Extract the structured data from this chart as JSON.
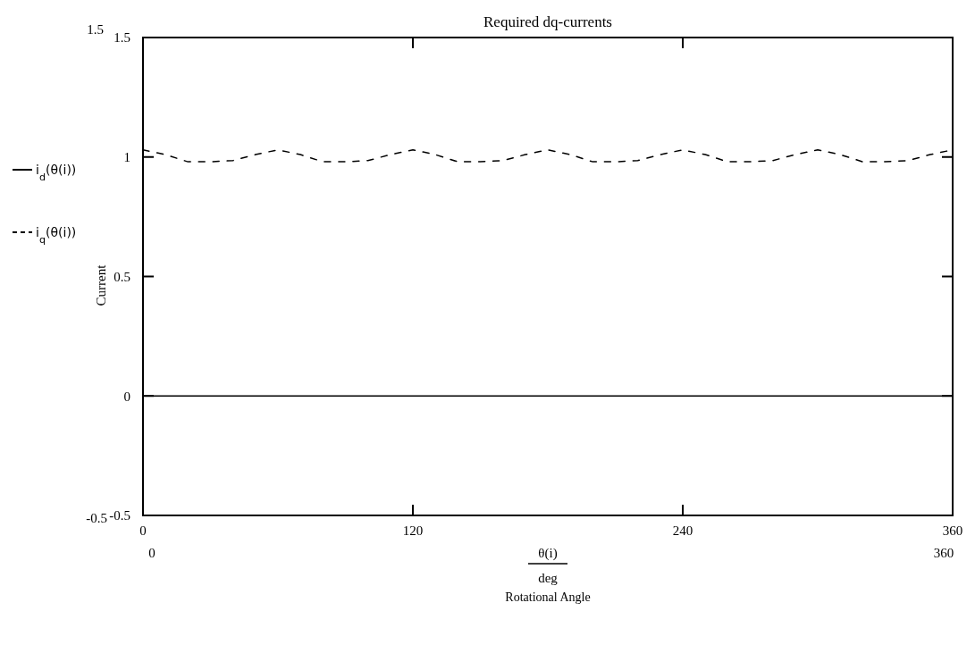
{
  "chart_data": {
    "type": "line",
    "title": "Required dq-currents",
    "xlabel": "Rotational Angle",
    "ylabel": "Current",
    "x": [
      0,
      10,
      20,
      30,
      40,
      50,
      60,
      70,
      80,
      90,
      100,
      110,
      120,
      130,
      140,
      150,
      160,
      170,
      180,
      190,
      200,
      210,
      220,
      230,
      240,
      250,
      260,
      270,
      280,
      290,
      300,
      310,
      320,
      330,
      340,
      350,
      360
    ],
    "series": [
      {
        "name": "i$_{d}$(θ(i))",
        "color": "#000000",
        "line_style": "solid",
        "values": [
          0,
          0,
          0,
          0,
          0,
          0,
          0,
          0,
          0,
          0,
          0,
          0,
          0,
          0,
          0,
          0,
          0,
          0,
          0,
          0,
          0,
          0,
          0,
          0,
          0,
          0,
          0,
          0,
          0,
          0,
          0,
          0,
          0,
          0,
          0,
          0,
          0
        ]
      },
      {
        "name": "i$_{q}$(θ(i))",
        "color": "#000000",
        "line_style": "dashed",
        "values": [
          1.03,
          1.01,
          0.98,
          0.98,
          0.985,
          1.01,
          1.03,
          1.01,
          0.98,
          0.98,
          0.985,
          1.01,
          1.03,
          1.01,
          0.98,
          0.98,
          0.985,
          1.01,
          1.03,
          1.01,
          0.98,
          0.98,
          0.985,
          1.01,
          1.03,
          1.01,
          0.98,
          0.98,
          0.985,
          1.01,
          1.03,
          1.01,
          0.98,
          0.98,
          0.985,
          1.01,
          1.03
        ]
      }
    ],
    "xlim": [
      0,
      360
    ],
    "xticks": [
      0,
      120,
      240,
      360
    ],
    "ylim": [
      -0.5,
      1.5
    ],
    "yticks": [
      -0.5,
      0,
      0.5,
      1,
      1.5
    ],
    "legend": "left",
    "grid": false,
    "annotations": [
      "1.5",
      "-0.5",
      "0",
      "360",
      "θ(i)",
      "deg"
    ]
  }
}
